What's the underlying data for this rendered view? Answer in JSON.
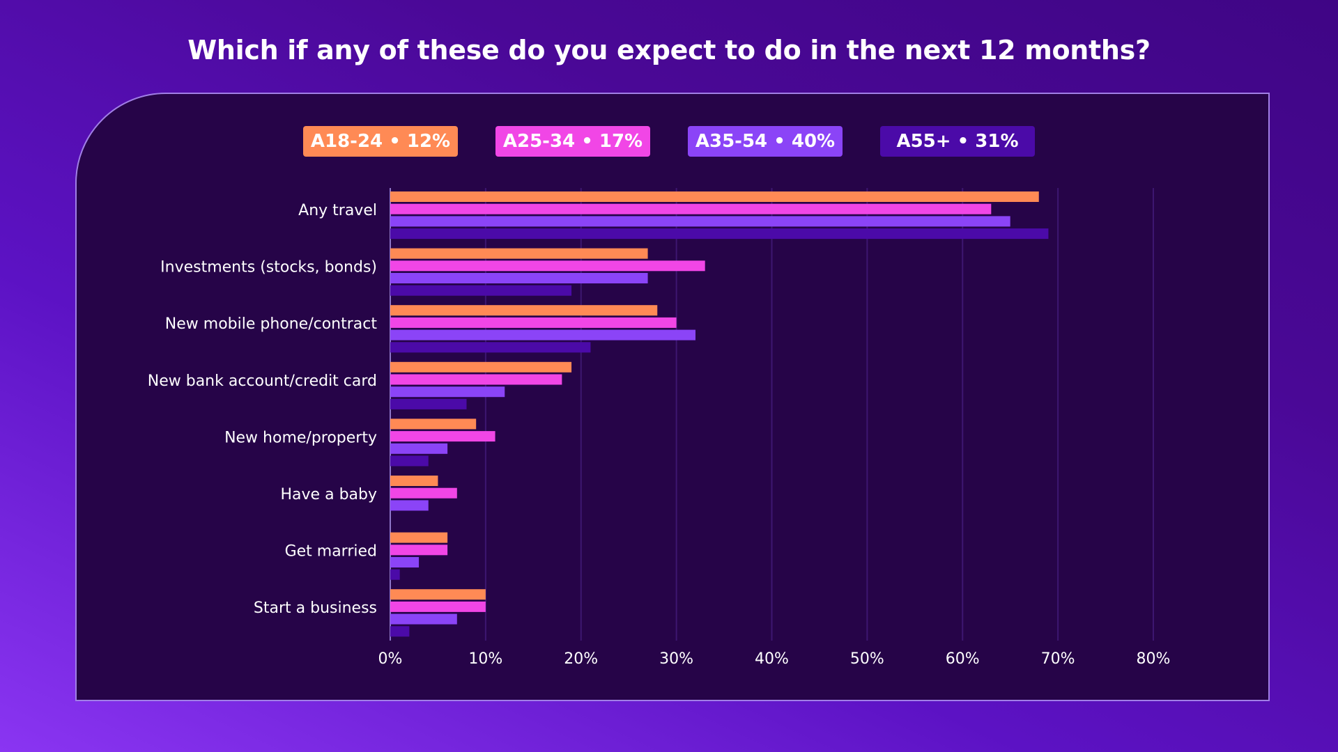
{
  "chart_data": {
    "type": "bar",
    "orientation": "horizontal",
    "title": "Which if any of these do you expect to do in the next 12 months?",
    "categories": [
      "Any travel",
      "Investments (stocks, bonds)",
      "New mobile phone/contract",
      "New bank account/credit card",
      "New home/property",
      "Have a baby",
      "Get married",
      "Start a business"
    ],
    "series": [
      {
        "name": "A18-24 • 12%",
        "color": "#ff8a55",
        "values": [
          68,
          27,
          28,
          19,
          9,
          5,
          6,
          10
        ]
      },
      {
        "name": "A25-34 • 17%",
        "color": "#f146e6",
        "values": [
          63,
          33,
          30,
          18,
          11,
          7,
          6,
          10
        ]
      },
      {
        "name": "A35-54 • 40%",
        "color": "#8b44f7",
        "values": [
          65,
          27,
          32,
          12,
          6,
          4,
          3,
          7
        ]
      },
      {
        "name": "A55+ • 31%",
        "color": "#4b0aa8",
        "values": [
          69,
          19,
          21,
          8,
          4,
          0,
          1,
          2
        ]
      }
    ],
    "xlim": [
      0,
      80
    ],
    "xticks": [
      "0%",
      "10%",
      "20%",
      "30%",
      "40%",
      "50%",
      "60%",
      "70%",
      "80%"
    ],
    "grid": true,
    "legend_position": "top"
  },
  "colors": {
    "gridline": "#3d1670",
    "axis": "#8f77c9"
  }
}
